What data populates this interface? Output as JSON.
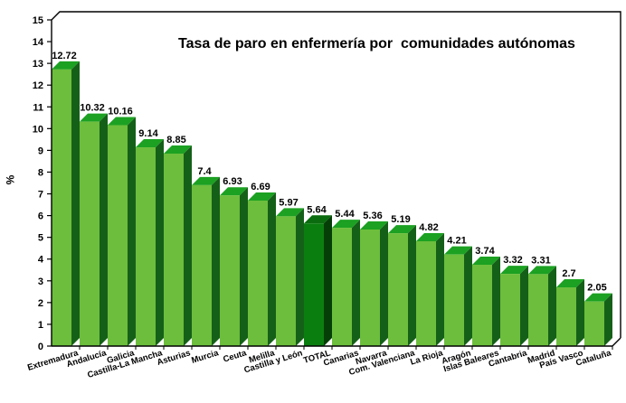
{
  "chart_data": {
    "type": "bar",
    "title": "Tasa de paro en enfermería por  comunidades autónomas",
    "xlabel": "",
    "ylabel": "%",
    "ylim": [
      0,
      15
    ],
    "ytick_step": 1,
    "grid": false,
    "legend": false,
    "bar_style": "3d",
    "categories": [
      "Extremadura",
      "Andalucía",
      "Galicia",
      "Castilla-La Mancha",
      "Asturias",
      "Murcia",
      "Ceuta",
      "Melilla",
      "Castilla y León",
      "TOTAL",
      "Canarias",
      "Navarra",
      "Com. Valenciana",
      "La Rioja",
      "Aragón",
      "Islas Baleares",
      "Cantabria",
      "Madrid",
      "País Vasco",
      "Cataluña"
    ],
    "values": [
      12.72,
      10.32,
      10.16,
      9.14,
      8.85,
      7.4,
      6.93,
      6.69,
      5.97,
      5.64,
      5.44,
      5.36,
      5.19,
      4.82,
      4.21,
      3.74,
      3.32,
      3.31,
      2.7,
      2.05
    ],
    "highlight_category": "TOTAL",
    "colors": {
      "bar_front": "#6CBE3C",
      "bar_top": "#1CA122",
      "bar_side": "#156018",
      "total_front": "#0B7E10",
      "total_top": "#0A6C0E",
      "total_side": "#053F07",
      "axis": "#000000",
      "text": "#000000",
      "background": "#FFFFFF"
    }
  }
}
